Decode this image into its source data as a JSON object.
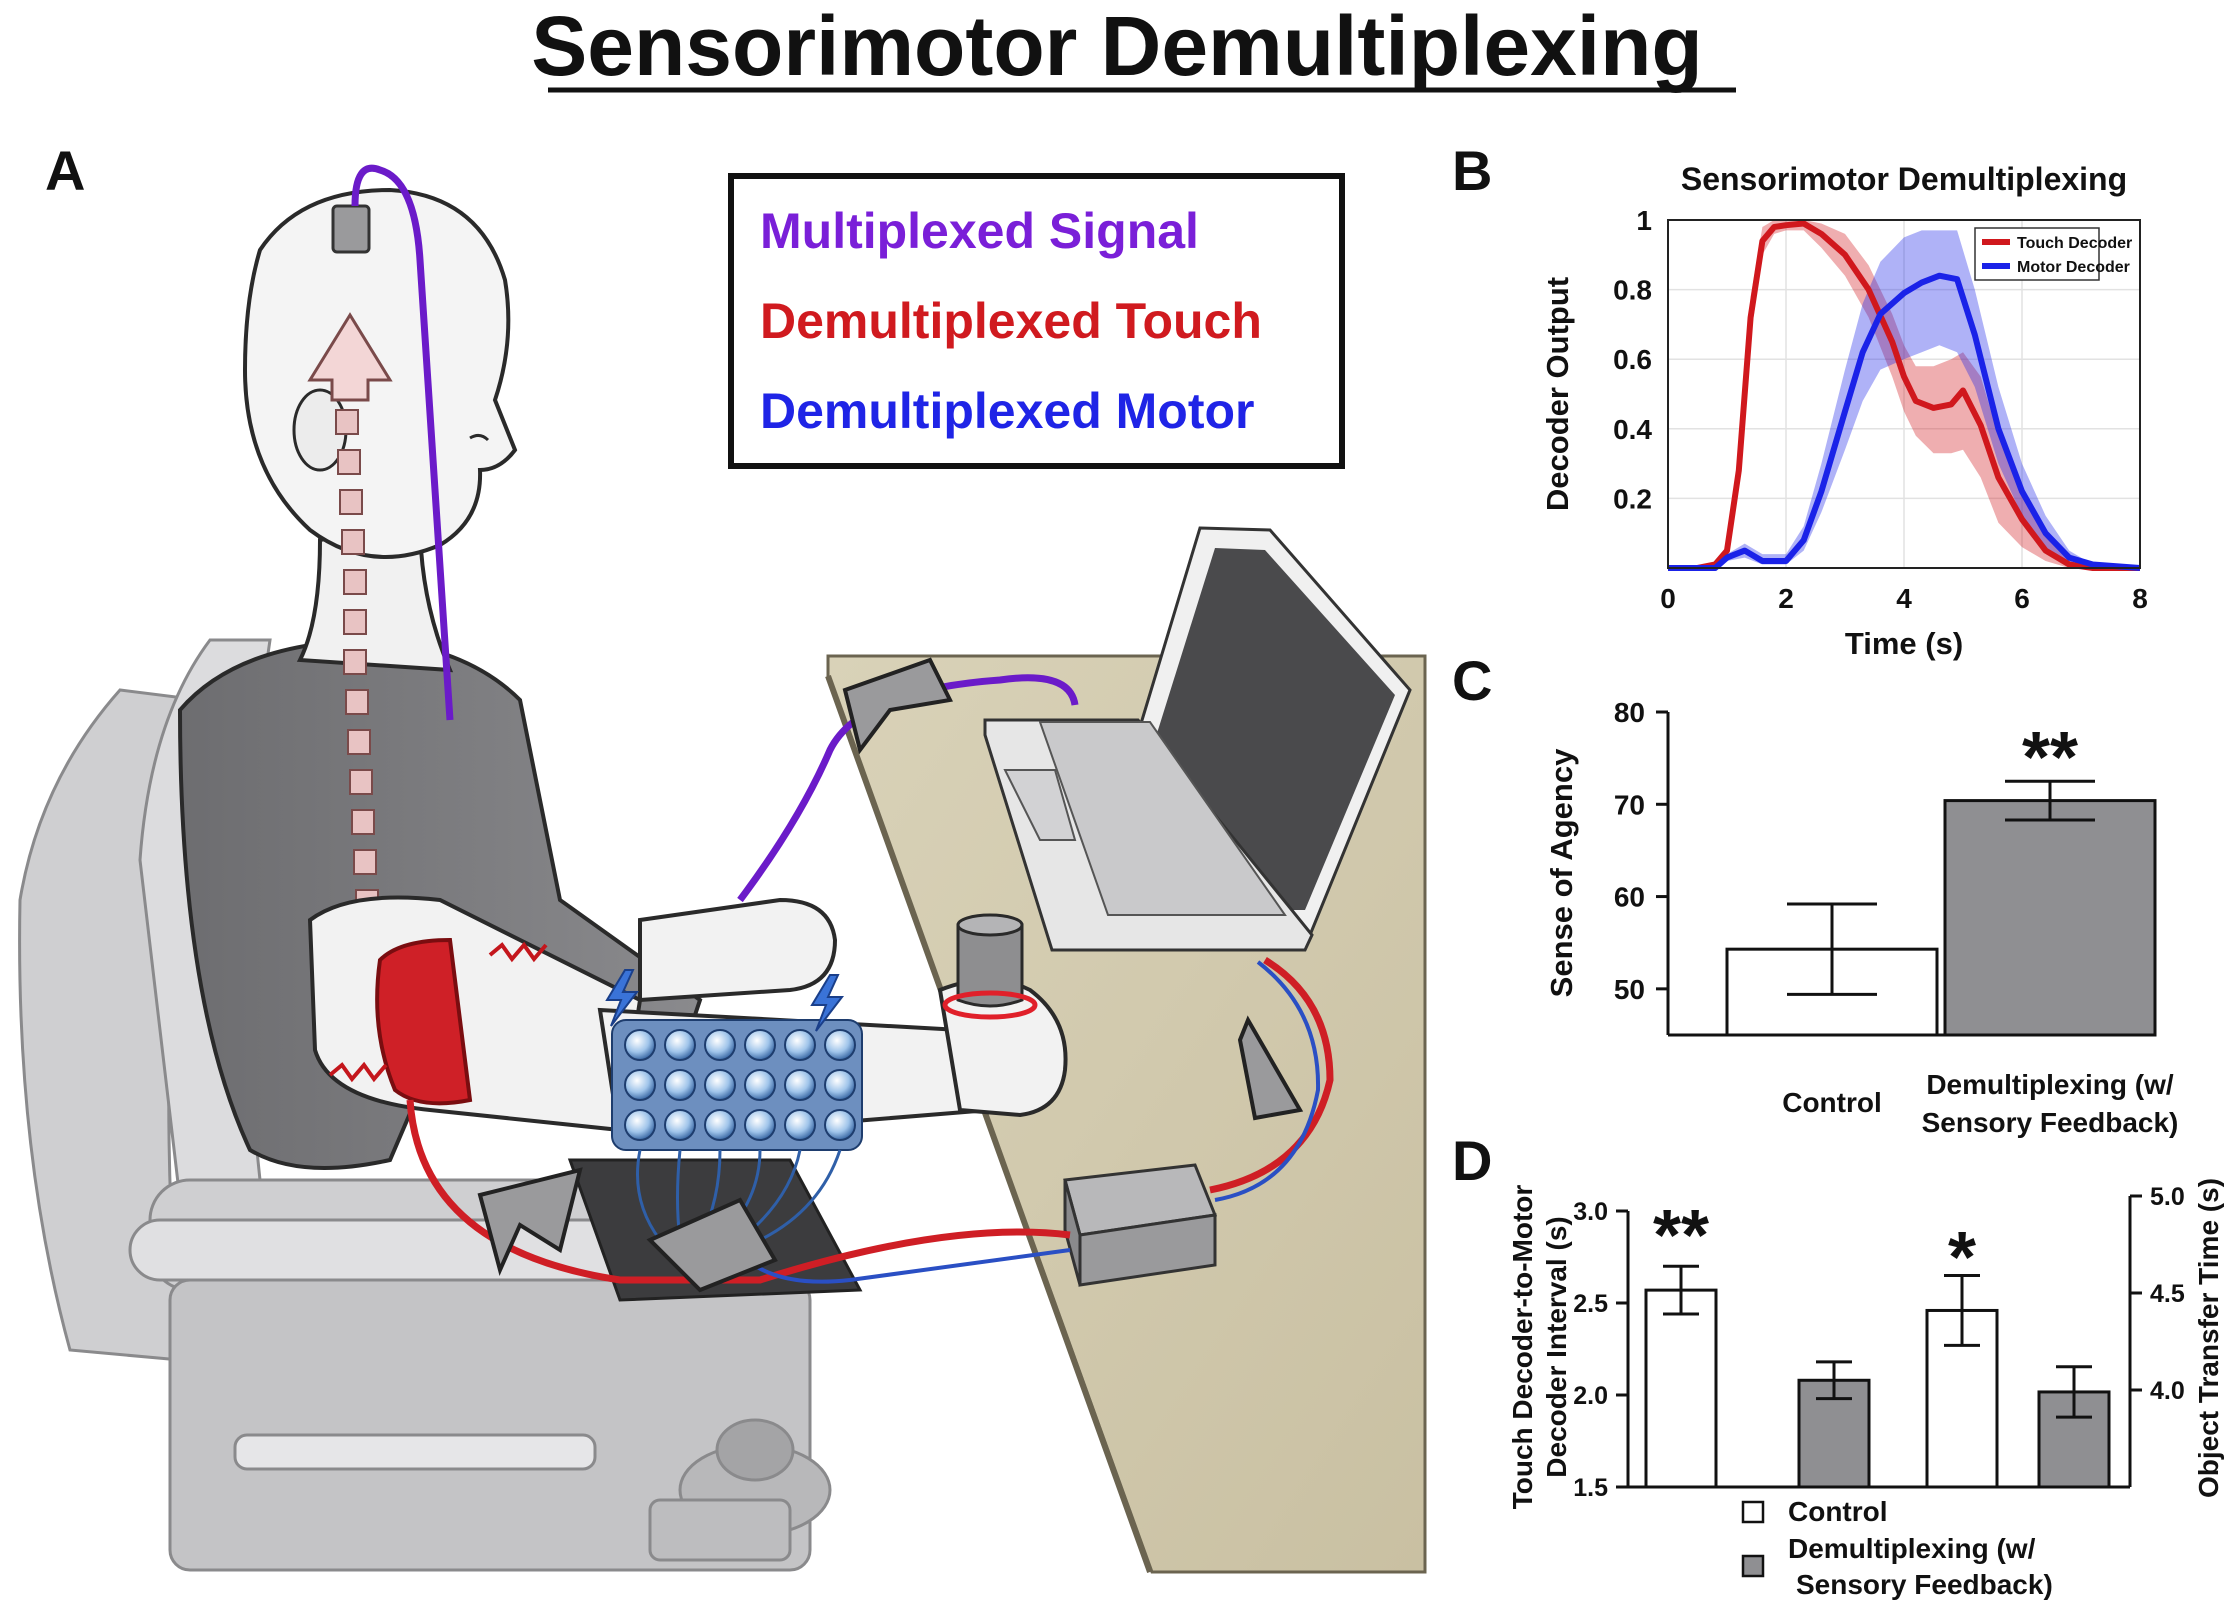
{
  "figure_title": "Sensorimotor Demultiplexing",
  "panelA": {
    "letter": "A",
    "legend": {
      "multiplexed": {
        "label": "Multiplexed Signal",
        "color": "#7a1fd8"
      },
      "touch": {
        "label": "Demultiplexed Touch",
        "color": "#d01a1f"
      },
      "motor": {
        "label": "Demultiplexed Motor",
        "color": "#1f24e6"
      }
    }
  },
  "panelB": {
    "letter": "B"
  },
  "panelC": {
    "letter": "C",
    "significance": "**"
  },
  "panelD": {
    "letter": "D",
    "left_significance": "**",
    "right_significance": "*"
  },
  "colors": {
    "control_fill": "#ffffff",
    "demux_fill": "#8f8f92",
    "touch": "#d0181d",
    "motor": "#1a22e8"
  },
  "chart_data": [
    {
      "type": "line",
      "title": "Sensorimotor Demultiplexing",
      "xlabel": "Time (s)",
      "ylabel": "Decoder Output",
      "xlim": [
        0,
        8
      ],
      "ylim": [
        0,
        1
      ],
      "xticks": [
        "0",
        "2",
        "4",
        "6",
        "8"
      ],
      "yticks": [
        "0.2",
        "0.4",
        "0.6",
        "0.8",
        "1"
      ],
      "grid": true,
      "legend_position": "top-right",
      "series": [
        {
          "name": "Touch Decoder",
          "color": "#d0181d",
          "x": [
            0,
            0.5,
            0.8,
            1.0,
            1.2,
            1.4,
            1.6,
            1.8,
            2.0,
            2.3,
            2.6,
            3.0,
            3.4,
            3.8,
            4.0,
            4.2,
            4.5,
            4.8,
            5.0,
            5.3,
            5.6,
            6.0,
            6.4,
            6.8,
            7.2,
            8.0
          ],
          "y": [
            0,
            0,
            0.01,
            0.05,
            0.28,
            0.72,
            0.94,
            0.98,
            0.985,
            0.99,
            0.96,
            0.9,
            0.8,
            0.65,
            0.55,
            0.48,
            0.46,
            0.47,
            0.51,
            0.41,
            0.26,
            0.14,
            0.05,
            0.01,
            0,
            0
          ],
          "lower": [
            0,
            0,
            0.01,
            0.04,
            0.24,
            0.66,
            0.9,
            0.96,
            0.97,
            0.97,
            0.92,
            0.84,
            0.72,
            0.55,
            0.45,
            0.38,
            0.33,
            0.33,
            0.34,
            0.26,
            0.13,
            0.06,
            0.02,
            0,
            0,
            0
          ],
          "upper": [
            0,
            0,
            0.01,
            0.06,
            0.32,
            0.78,
            0.98,
            1.0,
            1.0,
            1.0,
            0.99,
            0.96,
            0.87,
            0.73,
            0.64,
            0.58,
            0.58,
            0.6,
            0.62,
            0.55,
            0.38,
            0.22,
            0.09,
            0.02,
            0,
            0
          ]
        },
        {
          "name": "Motor Decoder",
          "color": "#1a22e8",
          "x": [
            0,
            0.8,
            1.0,
            1.3,
            1.6,
            2.0,
            2.3,
            2.6,
            3.0,
            3.3,
            3.6,
            4.0,
            4.3,
            4.6,
            4.9,
            5.2,
            5.6,
            6.0,
            6.4,
            6.8,
            7.2,
            8.0
          ],
          "y": [
            0,
            0,
            0.03,
            0.05,
            0.02,
            0.02,
            0.08,
            0.22,
            0.45,
            0.62,
            0.73,
            0.79,
            0.82,
            0.84,
            0.83,
            0.67,
            0.4,
            0.22,
            0.1,
            0.03,
            0.01,
            0
          ],
          "lower": [
            0,
            0,
            0.02,
            0.03,
            0.01,
            0.01,
            0.05,
            0.16,
            0.34,
            0.48,
            0.57,
            0.6,
            0.62,
            0.64,
            0.62,
            0.52,
            0.3,
            0.15,
            0.06,
            0.01,
            0,
            0
          ],
          "upper": [
            0,
            0,
            0.04,
            0.07,
            0.04,
            0.04,
            0.12,
            0.3,
            0.57,
            0.76,
            0.88,
            0.95,
            0.97,
            0.97,
            0.97,
            0.8,
            0.52,
            0.3,
            0.15,
            0.05,
            0.01,
            0
          ]
        }
      ]
    },
    {
      "type": "bar",
      "ylabel": "Sense of Agency",
      "ylim": [
        45,
        80
      ],
      "yticks": [
        "50",
        "60",
        "70",
        "80"
      ],
      "categories": [
        "Control",
        "Demultiplexing (w/ Sensory Feedback)"
      ],
      "category_lines": [
        [
          "Control"
        ],
        [
          "Demultiplexing (w/",
          "Sensory Feedback)"
        ]
      ],
      "values": [
        54.3,
        70.4
      ],
      "errors": [
        4.9,
        2.1
      ]
    },
    {
      "type": "bar",
      "ylabel_lines": [
        "Touch Decoder-to-Motor",
        "Decoder Interval (s)"
      ],
      "ylim": [
        1.5,
        3.0
      ],
      "yticks": [
        "1.5",
        "2.0",
        "2.5",
        "3.0"
      ],
      "series": [
        {
          "name": "Control",
          "values": [
            2.57
          ],
          "errors": [
            0.13
          ]
        },
        {
          "name": "Demultiplexing (w/ Sensory Feedback)",
          "values": [
            2.08
          ],
          "errors": [
            0.1
          ]
        }
      ]
    },
    {
      "type": "bar",
      "ylabel": "Object Transfer Time (s)",
      "ylim": [
        3.5,
        5.0
      ],
      "yticks": [
        "4.0",
        "4.5",
        "5.0"
      ],
      "series": [
        {
          "name": "Control",
          "values": [
            4.41
          ],
          "errors": [
            0.18
          ]
        },
        {
          "name": "Demultiplexing (w/ Sensory Feedback)",
          "values": [
            3.99
          ],
          "errors": [
            0.13
          ]
        }
      ]
    }
  ],
  "panelD_legend": {
    "control": "Control",
    "demux_lines": [
      "Demultiplexing (w/",
      "Sensory Feedback)"
    ]
  }
}
